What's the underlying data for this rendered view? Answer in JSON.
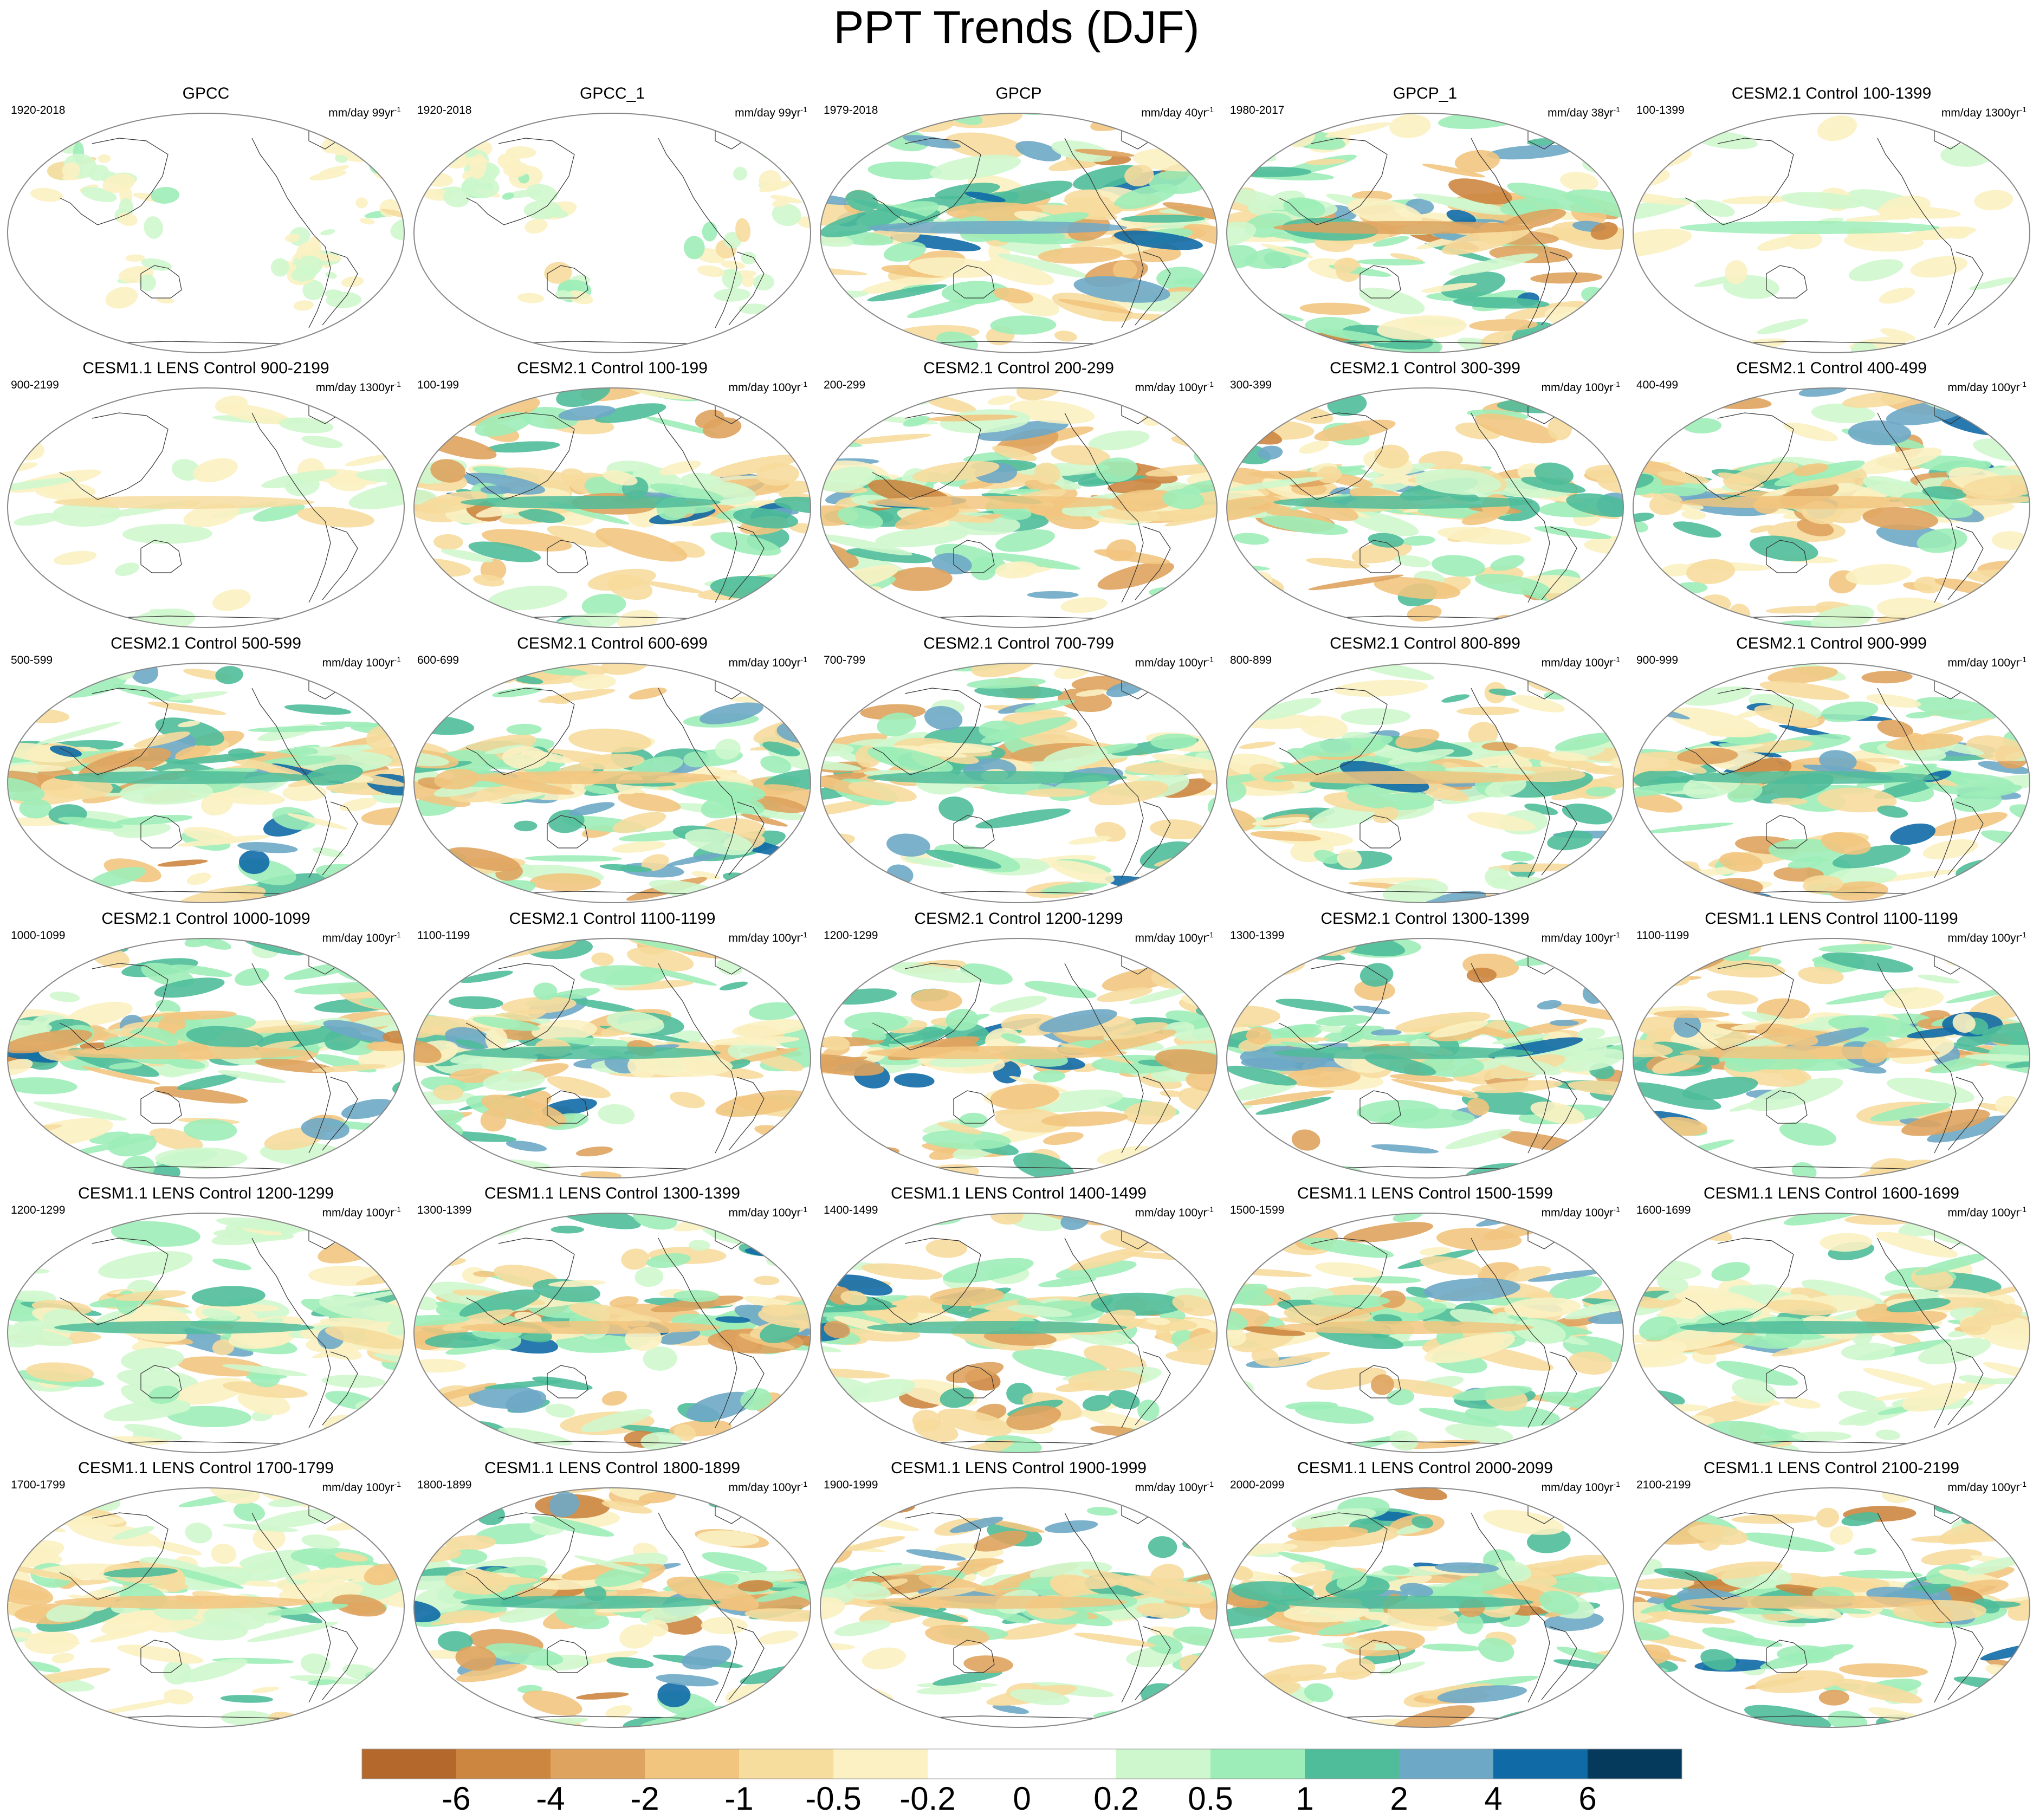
{
  "title": "PPT Trends (DJF)",
  "colorbar": {
    "colors": [
      "#b5682b",
      "#cc8640",
      "#dea35e",
      "#f2c57f",
      "#f6dc9d",
      "#fbf1c2",
      "#ffffff",
      "#ffffff",
      "#cff7cd",
      "#9ded b8",
      "#4fbc9a",
      "#6ea8c7",
      "#0f6aa6",
      "#053a5c"
    ],
    "labels": [
      "-6",
      "-4",
      "-2",
      "-1",
      "-0.5",
      "-0.2",
      "0",
      "0.2",
      "0.5",
      "1",
      "2",
      "4",
      "6"
    ]
  },
  "panels": [
    {
      "title": "GPCC",
      "period": "1920-2018",
      "units": "mm/day 99yr",
      "intensity": 0.35,
      "obs": "land"
    },
    {
      "title": "GPCC_1",
      "period": "1920-2018",
      "units": "mm/day 99yr",
      "intensity": 0.35,
      "obs": "land"
    },
    {
      "title": "GPCP",
      "period": "1979-2018",
      "units": "mm/day 40yr",
      "intensity": 1.0,
      "obs": "full"
    },
    {
      "title": "GPCP_1",
      "period": "1980-2017",
      "units": "mm/day 38yr",
      "intensity": 1.0,
      "obs": "full"
    },
    {
      "title": "CESM2.1 Control 100-1399",
      "period": "100-1399",
      "units": "mm/day 1300yr",
      "intensity": 0.25,
      "obs": "weak"
    },
    {
      "title": "CESM1.1 LENS Control 900-2199",
      "period": "900-2199",
      "units": "mm/day 1300yr",
      "intensity": 0.25,
      "obs": "weak"
    },
    {
      "title": "CESM2.1 Control 100-199",
      "period": "100-199",
      "units": "mm/day 100yr",
      "intensity": 0.85,
      "obs": "model"
    },
    {
      "title": "CESM2.1 Control 200-299",
      "period": "200-299",
      "units": "mm/day 100yr",
      "intensity": 0.8,
      "obs": "model"
    },
    {
      "title": "CESM2.1 Control 300-399",
      "period": "300-399",
      "units": "mm/day 100yr",
      "intensity": 0.8,
      "obs": "model"
    },
    {
      "title": "CESM2.1 Control 400-499",
      "period": "400-499",
      "units": "mm/day 100yr",
      "intensity": 0.85,
      "obs": "model"
    },
    {
      "title": "CESM2.1 Control 500-599",
      "period": "500-599",
      "units": "mm/day 100yr",
      "intensity": 0.85,
      "obs": "model"
    },
    {
      "title": "CESM2.1 Control 600-699",
      "period": "600-699",
      "units": "mm/day 100yr",
      "intensity": 0.8,
      "obs": "model"
    },
    {
      "title": "CESM2.1 Control 700-799",
      "period": "700-799",
      "units": "mm/day 100yr",
      "intensity": 0.85,
      "obs": "model"
    },
    {
      "title": "CESM2.1 Control 800-899",
      "period": "800-899",
      "units": "mm/day 100yr",
      "intensity": 0.8,
      "obs": "model"
    },
    {
      "title": "CESM2.1 Control 900-999",
      "period": "900-999",
      "units": "mm/day 100yr",
      "intensity": 0.9,
      "obs": "model"
    },
    {
      "title": "CESM2.1 Control 1000-1099",
      "period": "1000-1099",
      "units": "mm/day 100yr",
      "intensity": 0.85,
      "obs": "model"
    },
    {
      "title": "CESM2.1 Control 1100-1199",
      "period": "1100-1199",
      "units": "mm/day 100yr",
      "intensity": 0.85,
      "obs": "model"
    },
    {
      "title": "CESM2.1 Control 1200-1299",
      "period": "1200-1299",
      "units": "mm/day 100yr",
      "intensity": 0.8,
      "obs": "model"
    },
    {
      "title": "CESM2.1 Control 1300-1399",
      "period": "1300-1399",
      "units": "mm/day 100yr",
      "intensity": 0.85,
      "obs": "model"
    },
    {
      "title": "CESM1.1 LENS Control 1100-1199",
      "period": "1100-1199",
      "units": "mm/day 100yr",
      "intensity": 0.85,
      "obs": "model"
    },
    {
      "title": "CESM1.1 LENS Control 1200-1299",
      "period": "1200-1299",
      "units": "mm/day 100yr",
      "intensity": 0.7,
      "obs": "model"
    },
    {
      "title": "CESM1.1 LENS Control 1300-1399",
      "period": "1300-1399",
      "units": "mm/day 100yr",
      "intensity": 0.85,
      "obs": "model"
    },
    {
      "title": "CESM1.1 LENS Control 1400-1499",
      "period": "1400-1499",
      "units": "mm/day 100yr",
      "intensity": 0.75,
      "obs": "model"
    },
    {
      "title": "CESM1.1 LENS Control 1500-1599",
      "period": "1500-1599",
      "units": "mm/day 100yr",
      "intensity": 0.75,
      "obs": "model"
    },
    {
      "title": "CESM1.1 LENS Control 1600-1699",
      "period": "1600-1699",
      "units": "mm/day 100yr",
      "intensity": 0.7,
      "obs": "model"
    },
    {
      "title": "CESM1.1 LENS Control 1700-1799",
      "period": "1700-1799",
      "units": "mm/day 100yr",
      "intensity": 0.7,
      "obs": "model"
    },
    {
      "title": "CESM1.1 LENS Control 1800-1899",
      "period": "1800-1899",
      "units": "mm/day 100yr",
      "intensity": 0.75,
      "obs": "model"
    },
    {
      "title": "CESM1.1 LENS Control 1900-1999",
      "period": "1900-1999",
      "units": "mm/day 100yr",
      "intensity": 0.85,
      "obs": "model"
    },
    {
      "title": "CESM1.1 LENS Control 2000-2099",
      "period": "2000-2099",
      "units": "mm/day 100yr",
      "intensity": 0.8,
      "obs": "model"
    },
    {
      "title": "CESM1.1 LENS Control 2100-2199",
      "period": "2100-2199",
      "units": "mm/day 100yr",
      "intensity": 0.8,
      "obs": "model"
    }
  ]
}
